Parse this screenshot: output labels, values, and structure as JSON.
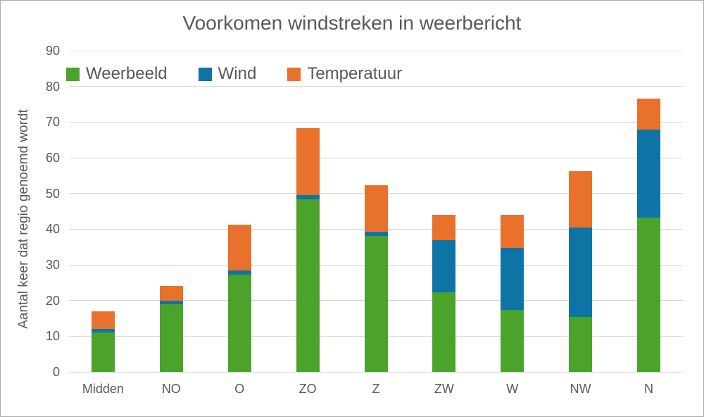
{
  "chart_data": {
    "type": "bar",
    "stacked": true,
    "title": "Voorkomen windstreken in weerbericht",
    "xlabel": "",
    "ylabel": "Aantal keer dat regio genoemd wordt",
    "ylim": [
      0,
      90
    ],
    "yticks": [
      0,
      10,
      20,
      30,
      40,
      50,
      60,
      70,
      80,
      90
    ],
    "grid": true,
    "legend_position": "top-left-inside",
    "categories": [
      "Midden",
      "NO",
      "O",
      "ZO",
      "Z",
      "ZW",
      "W",
      "NW",
      "N"
    ],
    "series": [
      {
        "name": "Weerbeeld",
        "color": "#4BA32C",
        "values": [
          11.0,
          19.0,
          27.3,
          48.3,
          38.0,
          22.3,
          17.4,
          15.4,
          43.3
        ]
      },
      {
        "name": "Wind",
        "color": "#0E74A6",
        "values": [
          1.0,
          1.0,
          1.1,
          1.2,
          1.2,
          14.7,
          17.4,
          25.0,
          24.6
        ]
      },
      {
        "name": "Temperatuur",
        "color": "#E8722C",
        "values": [
          5.0,
          4.0,
          12.9,
          18.8,
          13.1,
          7.1,
          9.3,
          15.8,
          8.7
        ]
      }
    ],
    "totals": [
      17.0,
      24.0,
      41.3,
      68.3,
      52.3,
      44.1,
      44.1,
      56.2,
      76.6
    ]
  },
  "colors": {
    "grid": "#d9d9d9",
    "axis_text": "#595959",
    "title_text": "#595959",
    "background": "#ffffff",
    "canvas_border": "#adadad"
  }
}
